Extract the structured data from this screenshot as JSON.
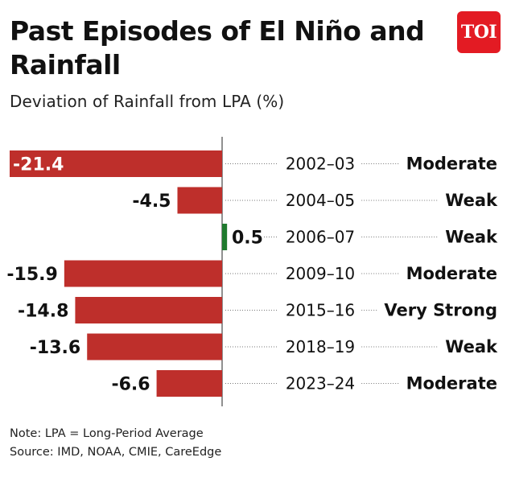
{
  "header": {
    "title": "Past Episodes of El Niño and Rainfall",
    "subtitle": "Deviation of Rainfall from LPA (%)",
    "logo_text": "TOI"
  },
  "footer": {
    "note": "Note: LPA = Long-Period Average",
    "source": "Source: IMD, NOAA, CMIE, CareEdge"
  },
  "colors": {
    "negative": "#be2f2b",
    "positive": "#1f7a2e",
    "brand": "#e31b23"
  },
  "chart_data": {
    "type": "bar",
    "orientation": "horizontal",
    "categories": [
      "2002–03",
      "2004–05",
      "2006–07",
      "2009–10",
      "2015–16",
      "2018–19",
      "2023–24"
    ],
    "values": [
      -21.4,
      -4.5,
      0.5,
      -15.9,
      -14.8,
      -13.6,
      -6.6
    ],
    "value_labels": [
      "-21.4",
      "-4.5",
      "0.5",
      "-15.9",
      "-14.8",
      "-13.6",
      "-6.6"
    ],
    "strength": [
      "Moderate",
      "Weak",
      "Weak",
      "Moderate",
      "Very Strong",
      "Weak",
      "Moderate"
    ],
    "xlim": [
      -22,
      0.5
    ]
  }
}
